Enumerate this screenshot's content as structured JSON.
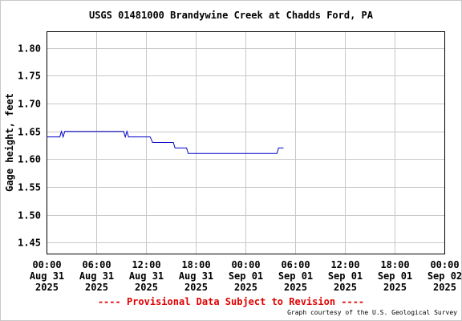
{
  "title": "USGS 01481000 Brandywine Creek at Chadds Ford, PA",
  "provisional_text": "---- Provisional Data Subject to Revision ----",
  "credit_text": "Graph courtesy of the U.S. Geological Survey",
  "colors": {
    "line": "#0000cc",
    "grid": "#c8c8c8",
    "provisional": "#e00000"
  },
  "chart_data": {
    "type": "line",
    "title": "USGS 01481000 Brandywine Creek at Chadds Ford, PA",
    "ylabel": "Gage height, feet",
    "xlabel": "",
    "ylim": [
      1.43,
      1.83
    ],
    "xlim_hours": [
      0,
      48
    ],
    "grid": true,
    "y_ticks": [
      "1.45",
      "1.50",
      "1.55",
      "1.60",
      "1.65",
      "1.70",
      "1.75",
      "1.80"
    ],
    "x_ticks": [
      {
        "hour": 0,
        "lines": [
          "00:00",
          "Aug 31",
          "2025"
        ]
      },
      {
        "hour": 6,
        "lines": [
          "06:00",
          "Aug 31",
          "2025"
        ]
      },
      {
        "hour": 12,
        "lines": [
          "12:00",
          "Aug 31",
          "2025"
        ]
      },
      {
        "hour": 18,
        "lines": [
          "18:00",
          "Aug 31",
          "2025"
        ]
      },
      {
        "hour": 24,
        "lines": [
          "00:00",
          "Sep 01",
          "2025"
        ]
      },
      {
        "hour": 30,
        "lines": [
          "06:00",
          "Sep 01",
          "2025"
        ]
      },
      {
        "hour": 36,
        "lines": [
          "12:00",
          "Sep 01",
          "2025"
        ]
      },
      {
        "hour": 42,
        "lines": [
          "18:00",
          "Sep 01",
          "2025"
        ]
      },
      {
        "hour": 48,
        "lines": [
          "00:00",
          "Sep 02",
          "2025"
        ]
      }
    ],
    "series": [
      {
        "points": [
          [
            0.0,
            1.64
          ],
          [
            1.6,
            1.64
          ],
          [
            1.8,
            1.65
          ],
          [
            2.0,
            1.64
          ],
          [
            2.2,
            1.65
          ],
          [
            9.3,
            1.65
          ],
          [
            9.5,
            1.64
          ],
          [
            9.7,
            1.65
          ],
          [
            9.9,
            1.64
          ],
          [
            12.5,
            1.64
          ],
          [
            12.8,
            1.63
          ],
          [
            15.3,
            1.63
          ],
          [
            15.5,
            1.62
          ],
          [
            16.9,
            1.62
          ],
          [
            17.1,
            1.61
          ],
          [
            27.8,
            1.61
          ],
          [
            28.0,
            1.62
          ],
          [
            28.6,
            1.62
          ]
        ]
      }
    ]
  }
}
